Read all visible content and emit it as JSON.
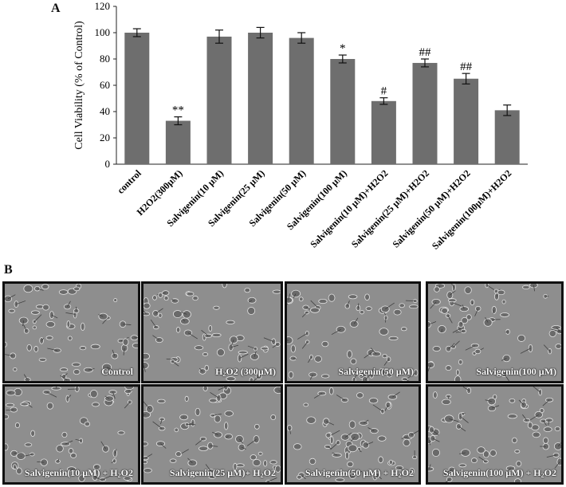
{
  "panel_labels": {
    "a": "A",
    "b": "B"
  },
  "chart_data": {
    "type": "bar",
    "ylabel": "Cell Viability (% of Control)",
    "ylim": [
      0,
      120
    ],
    "yticks": [
      0,
      20,
      40,
      60,
      80,
      100,
      120
    ],
    "bar_color": "#6e6e6e",
    "categories": [
      "control",
      "H2O2(300µM)",
      "Salvigenin(10 µM)",
      "Salvigenin(25 µM)",
      "Salvigenin(50 µM)",
      "Salvigenin(100 µM)",
      "Salvigenin(10 µM)+H2O2",
      "Salvigenin(25 µM)+H2O2",
      "Salvigenin(50 µM)+H2O2",
      "Salvigenin(100µM)+H2O2"
    ],
    "values": [
      100,
      33,
      97,
      100,
      96,
      80,
      48,
      77,
      65,
      41
    ],
    "errors": [
      3,
      3,
      5,
      4,
      4,
      3,
      2.5,
      3,
      4,
      4
    ],
    "annotations": [
      "",
      "**",
      "",
      "",
      "",
      "*",
      "#",
      "##",
      "##",
      ""
    ]
  },
  "micrographs": [
    {
      "name": "Control",
      "main": "Control",
      "sub": "",
      "tail": ""
    },
    {
      "name": "H2O2 300uM",
      "main": "H",
      "sub": "2",
      "tail": "O2 (300µM)"
    },
    {
      "name": "Salvigenin 50uM",
      "main": "Salvigenin(50 µM)",
      "sub": "",
      "tail": ""
    },
    {
      "name": "Salvigenin 100uM",
      "main": "Salvigenin(100 µM)",
      "sub": "",
      "tail": ""
    },
    {
      "name": "Salvigenin 10uM + H2O2",
      "main": "Salvigenin(10 µM) + H",
      "sub": "2",
      "tail": "O2"
    },
    {
      "name": "Salvigenin 25uM + H2O2",
      "main": "Salvigenin(25 µM)+ H",
      "sub": "2",
      "tail": "O2"
    },
    {
      "name": "Salvigenin 50uM + H2O2",
      "main": "Salvigenin(50 µM) + H",
      "sub": "2",
      "tail": "O2"
    },
    {
      "name": "Salvigenin 100uM + H2O2",
      "main": "Salvigenin(100 µM) + H",
      "sub": "2",
      "tail": "O2"
    }
  ]
}
